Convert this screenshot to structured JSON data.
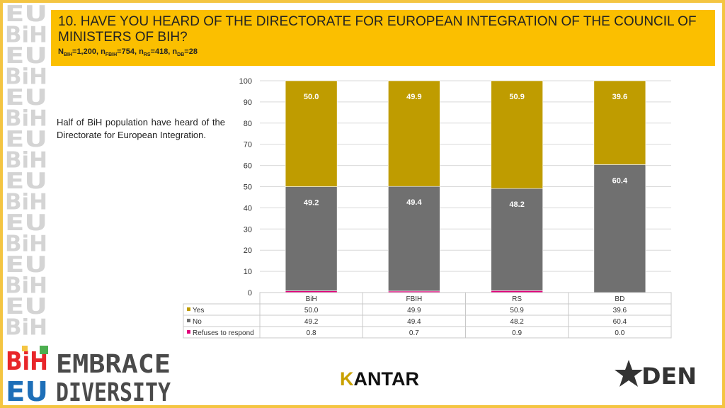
{
  "header": {
    "title": "10. HAVE YOU HEARD OF THE DIRECTORATE FOR EUROPEAN INTEGRATION OF THE COUNCIL OF MINISTERS OF BIH?",
    "sample_sizes": [
      {
        "sym": "N",
        "sub": "BiH",
        "val": "=1,200"
      },
      {
        "sym": "n",
        "sub": "FBiH",
        "val": "=754"
      },
      {
        "sym": "n",
        "sub": "RS",
        "val": "=418"
      },
      {
        "sym": "n",
        "sub": "DB",
        "val": "=28"
      }
    ]
  },
  "summary": "Half of BiH population have heard of the Directorate for European Integration.",
  "chart_data": {
    "type": "bar",
    "stacked": true,
    "categories": [
      "BiH",
      "FBIH",
      "RS",
      "BD"
    ],
    "series": [
      {
        "name": "Refuses to respond",
        "values": [
          0.8,
          0.7,
          0.9,
          0.0
        ],
        "color": "#e0007a",
        "labels": [
          "0.8",
          "0.7",
          "0.9",
          "0.0"
        ]
      },
      {
        "name": "No",
        "values": [
          49.2,
          49.4,
          48.2,
          60.4
        ],
        "color": "#707070",
        "labels": [
          "49.2",
          "49.4",
          "48.2",
          "60.4"
        ]
      },
      {
        "name": "Yes",
        "values": [
          50.0,
          49.9,
          50.9,
          39.6
        ],
        "color": "#bf9c00",
        "labels": [
          "50.0",
          "49.9",
          "50.9",
          "39.6"
        ]
      }
    ],
    "table_order": [
      "Yes",
      "No",
      "Refuses to respond"
    ],
    "ylim": [
      0,
      100
    ],
    "yticks": [
      0,
      10,
      20,
      30,
      40,
      50,
      60,
      70,
      80,
      90,
      100
    ],
    "grid": true,
    "legend": "data-table-below"
  },
  "branding": {
    "embrace_line1": "EMBRACE",
    "embrace_line2": "DIVERSITY",
    "kantar_first": "K",
    "kantar_rest": "ANTAR",
    "den_text": "DEN",
    "sidebar_letters": [
      "EU",
      "BiH",
      "EU",
      "BiH",
      "EU",
      "BiH",
      "EU",
      "BiH",
      "EU",
      "BiH",
      "EU",
      "BiH",
      "EU",
      "BiH",
      "EU",
      "BiH"
    ],
    "logo_bih": "BiH",
    "logo_eu": "EU"
  },
  "colors": {
    "accent": "#fbbf00",
    "yes": "#bf9c00",
    "no": "#707070",
    "refuses": "#e0007a",
    "grid": "#d9d9d9"
  }
}
